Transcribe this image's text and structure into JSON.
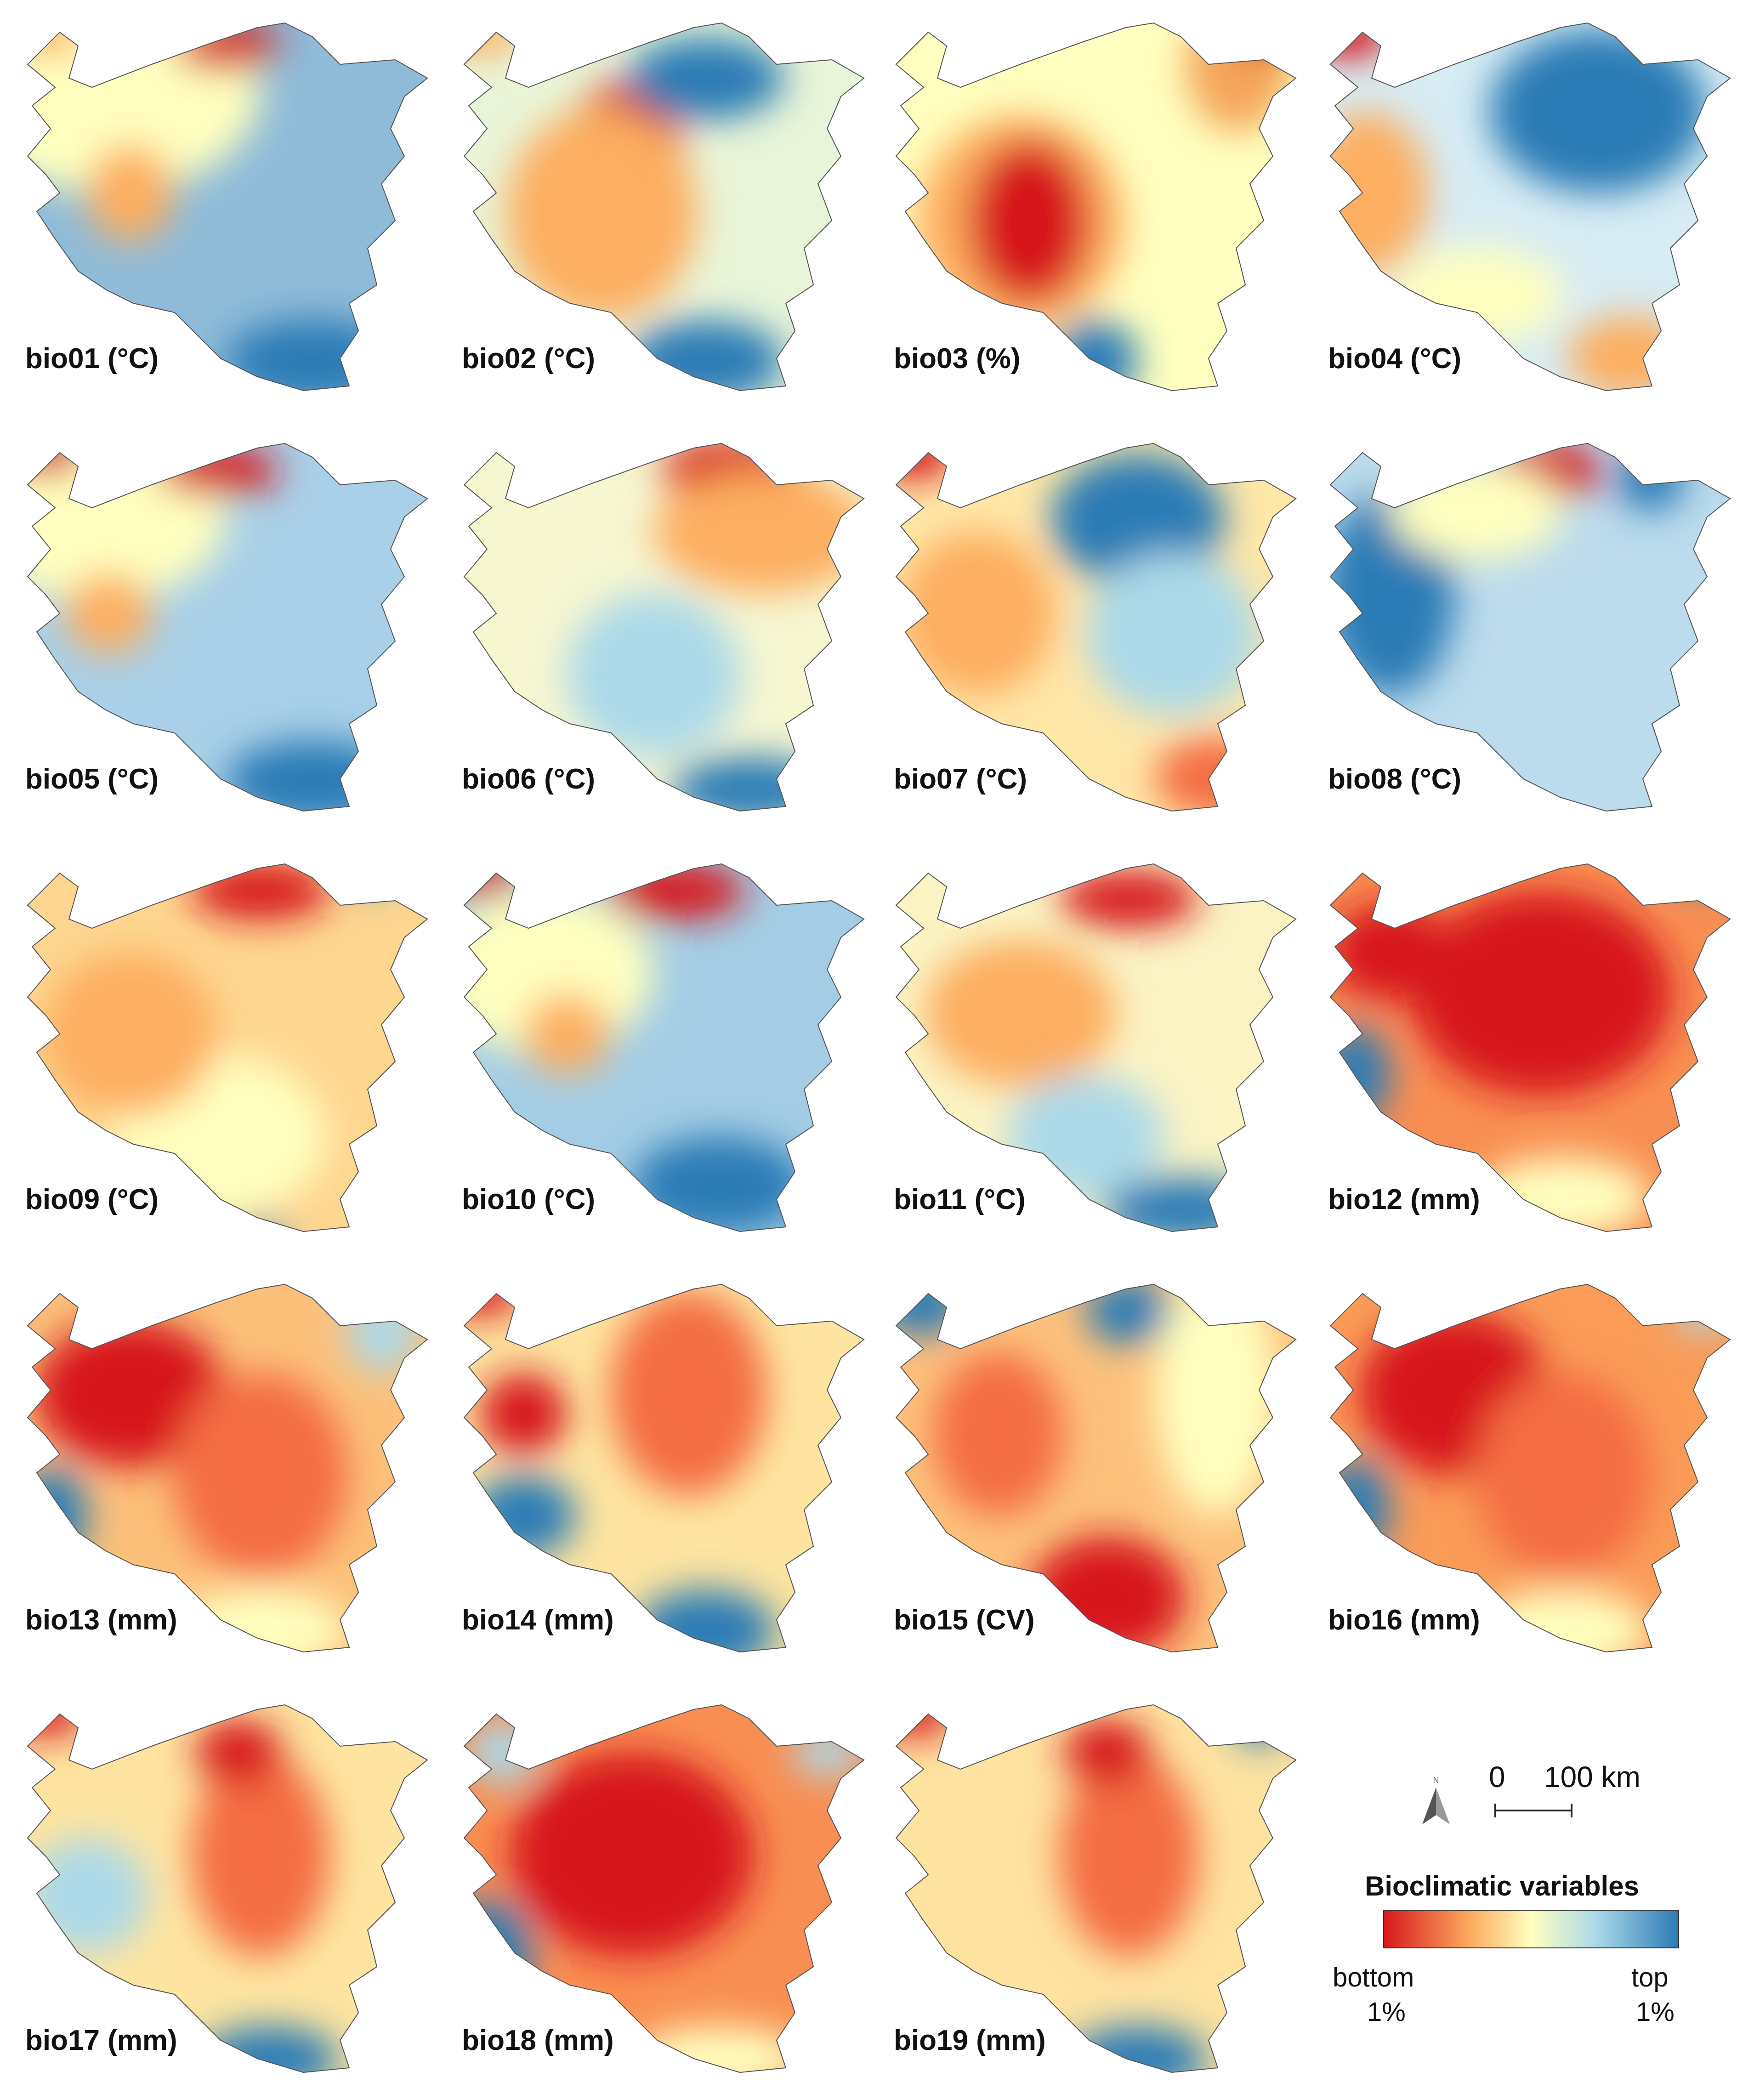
{
  "panels": [
    {
      "label": "bio01 (°C)",
      "base": "#8fbbd9",
      "blobs": [
        [
          "#ffffbf",
          0.25,
          0.2,
          0.35,
          0.25
        ],
        [
          "#d7191c",
          0.52,
          0.09,
          0.12,
          0.06
        ],
        [
          "#fdae61",
          0.3,
          0.45,
          0.1,
          0.12
        ],
        [
          "#2c7bb6",
          0.72,
          0.86,
          0.2,
          0.1
        ],
        [
          "#fdae61",
          0.1,
          0.06,
          0.1,
          0.05
        ]
      ]
    },
    {
      "label": "bio02 (°C)",
      "base": "#e9f5d8",
      "blobs": [
        [
          "#d7191c",
          0.43,
          0.38,
          0.14,
          0.2
        ],
        [
          "#fdae61",
          0.38,
          0.5,
          0.22,
          0.26
        ],
        [
          "#2c7bb6",
          0.62,
          0.17,
          0.18,
          0.1
        ],
        [
          "#2c7bb6",
          0.62,
          0.86,
          0.18,
          0.1
        ],
        [
          "#fdae61",
          0.1,
          0.06,
          0.1,
          0.05
        ]
      ]
    },
    {
      "label": "bio03 (%)",
      "base": "#ffffbf",
      "blobs": [
        [
          "#fdae61",
          0.35,
          0.52,
          0.24,
          0.26
        ],
        [
          "#d7191c",
          0.37,
          0.52,
          0.14,
          0.2
        ],
        [
          "#f4a55a",
          0.85,
          0.14,
          0.12,
          0.16
        ],
        [
          "#2c7bb6",
          0.52,
          0.86,
          0.1,
          0.1
        ],
        [
          "#d7191c",
          0.92,
          0.06,
          0.08,
          0.05
        ]
      ]
    },
    {
      "label": "bio04 (°C)",
      "base": "#d7ecf4",
      "blobs": [
        [
          "#2c7bb6",
          0.68,
          0.25,
          0.25,
          0.2
        ],
        [
          "#d7191c",
          0.1,
          0.06,
          0.1,
          0.06
        ],
        [
          "#fdae61",
          0.15,
          0.45,
          0.14,
          0.2
        ],
        [
          "#fdae61",
          0.75,
          0.85,
          0.14,
          0.1
        ],
        [
          "#ffffbf",
          0.4,
          0.7,
          0.2,
          0.12
        ]
      ]
    },
    {
      "label": "bio05 (°C)",
      "base": "#a9d0e8",
      "blobs": [
        [
          "#ffffbf",
          0.22,
          0.22,
          0.3,
          0.2
        ],
        [
          "#d7191c",
          0.5,
          0.1,
          0.14,
          0.06
        ],
        [
          "#fdae61",
          0.25,
          0.45,
          0.1,
          0.1
        ],
        [
          "#2c7bb6",
          0.72,
          0.86,
          0.2,
          0.1
        ],
        [
          "#d7191c",
          0.1,
          0.06,
          0.1,
          0.05
        ]
      ]
    },
    {
      "label": "bio06 (°C)",
      "base": "#f6f6d1",
      "blobs": [
        [
          "#d7191c",
          0.68,
          0.1,
          0.16,
          0.08
        ],
        [
          "#fdae61",
          0.75,
          0.25,
          0.25,
          0.15
        ],
        [
          "#abd9e9",
          0.5,
          0.6,
          0.2,
          0.2
        ],
        [
          "#2c7bb6",
          0.72,
          0.88,
          0.18,
          0.08
        ]
      ]
    },
    {
      "label": "bio07 (°C)",
      "base": "#ffe7a8",
      "blobs": [
        [
          "#2c7bb6",
          0.62,
          0.22,
          0.2,
          0.16
        ],
        [
          "#abd9e9",
          0.7,
          0.5,
          0.2,
          0.2
        ],
        [
          "#d7191c",
          0.1,
          0.06,
          0.1,
          0.06
        ],
        [
          "#fdae61",
          0.25,
          0.45,
          0.18,
          0.2
        ],
        [
          "#f46d43",
          0.8,
          0.85,
          0.14,
          0.1
        ]
      ]
    },
    {
      "label": "bio08 (°C)",
      "base": "#bcdbed",
      "blobs": [
        [
          "#2c7bb6",
          0.2,
          0.4,
          0.15,
          0.25
        ],
        [
          "#d7191c",
          0.55,
          0.1,
          0.14,
          0.07
        ],
        [
          "#ffffbf",
          0.4,
          0.2,
          0.2,
          0.12
        ],
        [
          "#2c7bb6",
          0.8,
          0.12,
          0.08,
          0.08
        ]
      ]
    },
    {
      "label": "bio09 (°C)",
      "base": "#fed690",
      "blobs": [
        [
          "#ffffbf",
          0.5,
          0.7,
          0.25,
          0.2
        ],
        [
          "#d7191c",
          0.6,
          0.1,
          0.16,
          0.07
        ],
        [
          "#fdae61",
          0.3,
          0.45,
          0.2,
          0.2
        ],
        [
          "#2c7bb6",
          0.85,
          0.05,
          0.05,
          0.04
        ],
        [
          "#2c7bb6",
          0.6,
          0.95,
          0.06,
          0.04
        ]
      ]
    },
    {
      "label": "bio10 (°C)",
      "base": "#a4cde5",
      "blobs": [
        [
          "#ffffbf",
          0.25,
          0.3,
          0.25,
          0.2
        ],
        [
          "#d7191c",
          0.55,
          0.1,
          0.16,
          0.07
        ],
        [
          "#fdae61",
          0.3,
          0.45,
          0.1,
          0.1
        ],
        [
          "#2c7bb6",
          0.65,
          0.82,
          0.2,
          0.12
        ],
        [
          "#d7191c",
          0.1,
          0.06,
          0.1,
          0.05
        ]
      ]
    },
    {
      "label": "bio11 (°C)",
      "base": "#fbf3c4",
      "blobs": [
        [
          "#d7191c",
          0.6,
          0.12,
          0.16,
          0.07
        ],
        [
          "#fdae61",
          0.35,
          0.4,
          0.22,
          0.18
        ],
        [
          "#abd9e9",
          0.5,
          0.7,
          0.18,
          0.15
        ],
        [
          "#2c7bb6",
          0.72,
          0.88,
          0.18,
          0.08
        ]
      ]
    },
    {
      "label": "bio12 (mm)",
      "base": "#f98e52",
      "blobs": [
        [
          "#d7191c",
          0.55,
          0.35,
          0.3,
          0.25
        ],
        [
          "#d7191c",
          0.2,
          0.25,
          0.14,
          0.12
        ],
        [
          "#2c7bb6",
          0.12,
          0.55,
          0.08,
          0.12
        ],
        [
          "#ffffbf",
          0.6,
          0.85,
          0.2,
          0.1
        ],
        [
          "#2c7bb6",
          0.9,
          0.05,
          0.05,
          0.04
        ]
      ]
    },
    {
      "label": "bio13 (mm)",
      "base": "#fcc07a",
      "blobs": [
        [
          "#d7191c",
          0.3,
          0.3,
          0.22,
          0.18
        ],
        [
          "#f46d43",
          0.6,
          0.5,
          0.2,
          0.25
        ],
        [
          "#2c7bb6",
          0.12,
          0.6,
          0.08,
          0.12
        ],
        [
          "#ffffbf",
          0.6,
          0.88,
          0.2,
          0.1
        ],
        [
          "#abd9e9",
          0.88,
          0.15,
          0.08,
          0.1
        ]
      ]
    },
    {
      "label": "bio14 (mm)",
      "base": "#fee4a0",
      "blobs": [
        [
          "#f46d43",
          0.58,
          0.3,
          0.18,
          0.25
        ],
        [
          "#d7191c",
          0.2,
          0.35,
          0.1,
          0.1
        ],
        [
          "#d7191c",
          0.1,
          0.06,
          0.1,
          0.05
        ],
        [
          "#2c7bb6",
          0.62,
          0.88,
          0.16,
          0.1
        ],
        [
          "#2c7bb6",
          0.2,
          0.6,
          0.12,
          0.1
        ]
      ]
    },
    {
      "label": "bio15 (CV)",
      "base": "#fdc17c",
      "blobs": [
        [
          "#d7191c",
          0.55,
          0.8,
          0.18,
          0.15
        ],
        [
          "#2c7bb6",
          0.6,
          0.1,
          0.1,
          0.08
        ],
        [
          "#2c7bb6",
          0.12,
          0.08,
          0.1,
          0.08
        ],
        [
          "#ffffbf",
          0.8,
          0.3,
          0.14,
          0.3
        ],
        [
          "#f46d43",
          0.3,
          0.4,
          0.15,
          0.2
        ]
      ]
    },
    {
      "label": "bio16 (mm)",
      "base": "#fa9b58",
      "blobs": [
        [
          "#d7191c",
          0.35,
          0.3,
          0.22,
          0.2
        ],
        [
          "#f46d43",
          0.6,
          0.5,
          0.2,
          0.25
        ],
        [
          "#2c7bb6",
          0.12,
          0.58,
          0.08,
          0.12
        ],
        [
          "#ffffbf",
          0.6,
          0.88,
          0.2,
          0.1
        ],
        [
          "#abd9e9",
          0.92,
          0.1,
          0.06,
          0.05
        ]
      ]
    },
    {
      "label": "bio17 (mm)",
      "base": "#fee4a0",
      "blobs": [
        [
          "#f46d43",
          0.6,
          0.4,
          0.16,
          0.25
        ],
        [
          "#d7191c",
          0.55,
          0.15,
          0.1,
          0.08
        ],
        [
          "#d7191c",
          0.1,
          0.06,
          0.1,
          0.05
        ],
        [
          "#2c7bb6",
          0.62,
          0.9,
          0.16,
          0.08
        ],
        [
          "#abd9e9",
          0.2,
          0.5,
          0.14,
          0.14
        ]
      ]
    },
    {
      "label": "bio18 (mm)",
      "base": "#f98e52",
      "blobs": [
        [
          "#d7191c",
          0.45,
          0.4,
          0.28,
          0.25
        ],
        [
          "#2c7bb6",
          0.12,
          0.65,
          0.1,
          0.14
        ],
        [
          "#ffffbf",
          0.65,
          0.9,
          0.2,
          0.08
        ],
        [
          "#abd9e9",
          0.15,
          0.15,
          0.08,
          0.08
        ],
        [
          "#abd9e9",
          0.9,
          0.15,
          0.08,
          0.06
        ]
      ]
    },
    {
      "label": "bio19 (mm)",
      "base": "#fee2a0",
      "blobs": [
        [
          "#f46d43",
          0.6,
          0.4,
          0.16,
          0.25
        ],
        [
          "#d7191c",
          0.55,
          0.15,
          0.1,
          0.08
        ],
        [
          "#d7191c",
          0.1,
          0.06,
          0.1,
          0.05
        ],
        [
          "#2c7bb6",
          0.62,
          0.9,
          0.16,
          0.08
        ],
        [
          "#2c7bb6",
          0.9,
          0.08,
          0.06,
          0.05
        ]
      ]
    }
  ],
  "scale": {
    "zero": "0",
    "distance": "100 km"
  },
  "legend": {
    "title": "Bioclimatic variables",
    "low_label": "bottom",
    "low_pct": "1%",
    "high_label": "top",
    "high_pct": "1%",
    "colors": [
      "#d7191c",
      "#fdae61",
      "#ffffbf",
      "#abd9e9",
      "#2c7bb6"
    ]
  }
}
